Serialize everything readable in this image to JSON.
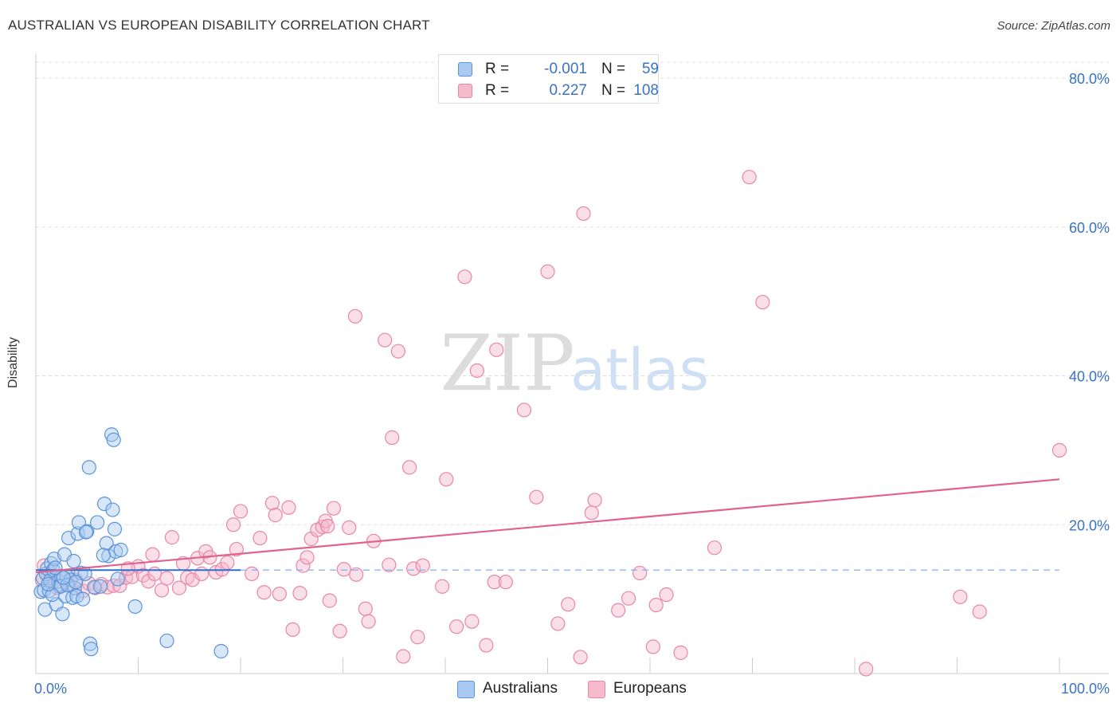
{
  "title": "AUSTRALIAN VS EUROPEAN DISABILITY CORRELATION CHART",
  "source": "Source: ZipAtlas.com",
  "watermark": {
    "zip": "ZIP",
    "atlas": "atlas"
  },
  "stats": {
    "australians": {
      "r_label": "R =",
      "r_value": "-0.001",
      "n_label": "N =",
      "n_value": "59"
    },
    "europeans": {
      "r_label": "R =",
      "r_value": "0.227",
      "n_label": "N =",
      "n_value": "108"
    }
  },
  "legend": {
    "australians": "Australians",
    "europeans": "Europeans"
  },
  "colors": {
    "australians_fill": "#a9c9f0",
    "australians_stroke": "#5b93d9",
    "australians_line": "#2f6fd0",
    "europeans_fill": "#f7b9cc",
    "europeans_stroke": "#e886a6",
    "europeans_line": "#e0628f",
    "tick_label": "#3873c8",
    "grid": "#dddddd"
  },
  "chart_data": {
    "type": "scatter",
    "title": "AUSTRALIAN VS EUROPEAN DISABILITY CORRELATION CHART",
    "xlabel": "",
    "ylabel": "Disability",
    "xlim": [
      0,
      100
    ],
    "ylim": [
      0,
      83
    ],
    "x_tick_labels": [
      {
        "value": 0,
        "label": "0.0%"
      },
      {
        "value": 100,
        "label": "100.0%"
      }
    ],
    "y_tick_labels": [
      {
        "value": 20,
        "label": "20.0%"
      },
      {
        "value": 40,
        "label": "40.0%"
      },
      {
        "value": 60,
        "label": "60.0%"
      },
      {
        "value": 80,
        "label": "80.0%"
      }
    ],
    "x_minor_ticks": [
      10,
      20,
      30,
      40,
      50,
      60,
      70,
      80,
      90,
      100
    ],
    "grid": true,
    "series": [
      {
        "name": "Australians",
        "trend": {
          "x": [
            0,
            20
          ],
          "y": [
            13.9,
            13.9
          ],
          "dashed_extension_to": 100
        },
        "points": [
          [
            0.5,
            11.0
          ],
          [
            0.7,
            12.8
          ],
          [
            0.8,
            11.2
          ],
          [
            0.9,
            8.6
          ],
          [
            1.0,
            13.4
          ],
          [
            1.1,
            14.1
          ],
          [
            1.3,
            11.1
          ],
          [
            1.4,
            12.5
          ],
          [
            1.5,
            14.8
          ],
          [
            1.7,
            13.9
          ],
          [
            1.8,
            15.4
          ],
          [
            2.0,
            9.3
          ],
          [
            2.2,
            12.4
          ],
          [
            2.3,
            11.8
          ],
          [
            2.5,
            13.0
          ],
          [
            2.6,
            8.0
          ],
          [
            2.8,
            16.0
          ],
          [
            2.9,
            10.4
          ],
          [
            3.0,
            13.1
          ],
          [
            3.2,
            18.2
          ],
          [
            3.4,
            12.6
          ],
          [
            3.6,
            10.2
          ],
          [
            3.7,
            15.1
          ],
          [
            3.8,
            11.5
          ],
          [
            4.0,
            10.4
          ],
          [
            4.1,
            18.8
          ],
          [
            4.2,
            20.3
          ],
          [
            4.4,
            13.5
          ],
          [
            4.6,
            10.0
          ],
          [
            4.8,
            13.4
          ],
          [
            5.0,
            19.1
          ],
          [
            5.2,
            27.7
          ],
          [
            5.3,
            4.0
          ],
          [
            5.4,
            3.3
          ],
          [
            5.7,
            11.6
          ],
          [
            6.0,
            20.3
          ],
          [
            6.3,
            11.7
          ],
          [
            6.7,
            22.8
          ],
          [
            6.9,
            17.5
          ],
          [
            7.1,
            15.8
          ],
          [
            7.4,
            32.1
          ],
          [
            7.6,
            31.4
          ],
          [
            7.8,
            16.4
          ],
          [
            8.0,
            12.7
          ],
          [
            8.3,
            16.6
          ],
          [
            9.7,
            9.0
          ],
          [
            7.5,
            22.0
          ],
          [
            7.7,
            19.4
          ],
          [
            6.6,
            15.9
          ],
          [
            4.9,
            19.0
          ],
          [
            2.4,
            11.7
          ],
          [
            1.6,
            10.6
          ],
          [
            1.2,
            12.0
          ],
          [
            3.1,
            11.9
          ],
          [
            3.9,
            12.3
          ],
          [
            12.8,
            4.4
          ],
          [
            18.1,
            3.0
          ],
          [
            1.9,
            14.2
          ],
          [
            2.7,
            12.9
          ]
        ]
      },
      {
        "name": "Europeans",
        "trend": {
          "x": [
            0,
            100
          ],
          "y": [
            13.6,
            26.1
          ]
        },
        "points": [
          [
            0.6,
            12.6
          ],
          [
            0.8,
            14.5
          ],
          [
            1.2,
            13.2
          ],
          [
            1.5,
            12.1
          ],
          [
            2.1,
            11.5
          ],
          [
            2.7,
            12.7
          ],
          [
            3.3,
            11.9
          ],
          [
            3.9,
            12.6
          ],
          [
            4.6,
            11.1
          ],
          [
            5.2,
            12.1
          ],
          [
            5.8,
            11.5
          ],
          [
            6.4,
            12.0
          ],
          [
            7.0,
            11.6
          ],
          [
            7.6,
            11.8
          ],
          [
            8.2,
            11.8
          ],
          [
            8.8,
            12.9
          ],
          [
            9.4,
            13.0
          ],
          [
            10.0,
            14.4
          ],
          [
            10.5,
            13.2
          ],
          [
            11.0,
            12.4
          ],
          [
            11.6,
            13.4
          ],
          [
            11.4,
            16.0
          ],
          [
            12.3,
            11.2
          ],
          [
            12.8,
            12.8
          ],
          [
            13.3,
            18.3
          ],
          [
            14.0,
            11.5
          ],
          [
            14.4,
            14.8
          ],
          [
            14.8,
            12.9
          ],
          [
            15.3,
            12.6
          ],
          [
            15.8,
            15.5
          ],
          [
            16.2,
            13.4
          ],
          [
            16.6,
            16.4
          ],
          [
            17.0,
            15.6
          ],
          [
            17.6,
            13.6
          ],
          [
            18.2,
            14.0
          ],
          [
            18.7,
            14.9
          ],
          [
            19.3,
            20.0
          ],
          [
            19.6,
            16.7
          ],
          [
            20.0,
            21.8
          ],
          [
            21.1,
            13.4
          ],
          [
            21.9,
            18.2
          ],
          [
            22.3,
            10.9
          ],
          [
            23.1,
            22.9
          ],
          [
            23.4,
            21.3
          ],
          [
            23.8,
            10.7
          ],
          [
            24.7,
            22.3
          ],
          [
            25.1,
            5.9
          ],
          [
            25.8,
            10.8
          ],
          [
            26.1,
            14.5
          ],
          [
            26.5,
            15.6
          ],
          [
            26.9,
            18.1
          ],
          [
            27.5,
            19.3
          ],
          [
            28.0,
            19.7
          ],
          [
            28.3,
            20.5
          ],
          [
            28.7,
            9.8
          ],
          [
            29.1,
            22.2
          ],
          [
            29.7,
            5.7
          ],
          [
            30.1,
            14.0
          ],
          [
            30.6,
            19.6
          ],
          [
            31.3,
            13.3
          ],
          [
            32.2,
            8.7
          ],
          [
            32.5,
            7.0
          ],
          [
            33.0,
            17.8
          ],
          [
            34.1,
            44.8
          ],
          [
            34.5,
            14.6
          ],
          [
            35.4,
            43.3
          ],
          [
            35.9,
            2.3
          ],
          [
            36.5,
            27.7
          ],
          [
            36.9,
            14.1
          ],
          [
            37.3,
            4.9
          ],
          [
            37.8,
            14.5
          ],
          [
            39.7,
            11.7
          ],
          [
            40.1,
            26.1
          ],
          [
            41.1,
            6.3
          ],
          [
            41.9,
            53.3
          ],
          [
            42.6,
            7.0
          ],
          [
            43.1,
            40.7
          ],
          [
            44.0,
            3.8
          ],
          [
            44.8,
            12.3
          ],
          [
            45.0,
            43.5
          ],
          [
            45.9,
            12.3
          ],
          [
            47.7,
            35.4
          ],
          [
            48.9,
            23.7
          ],
          [
            50.0,
            54.0
          ],
          [
            51.0,
            6.7
          ],
          [
            52.0,
            9.3
          ],
          [
            53.2,
            2.2
          ],
          [
            53.5,
            61.8
          ],
          [
            54.3,
            21.6
          ],
          [
            54.6,
            23.3
          ],
          [
            56.9,
            8.5
          ],
          [
            57.9,
            10.1
          ],
          [
            59.0,
            13.5
          ],
          [
            60.3,
            3.6
          ],
          [
            60.6,
            9.2
          ],
          [
            61.6,
            10.6
          ],
          [
            63.0,
            2.8
          ],
          [
            66.3,
            16.9
          ],
          [
            69.7,
            66.7
          ],
          [
            71.0,
            49.9
          ],
          [
            81.1,
            0.6
          ],
          [
            90.3,
            10.3
          ],
          [
            92.2,
            8.3
          ],
          [
            100.0,
            30.0
          ],
          [
            31.2,
            48.0
          ],
          [
            34.8,
            31.7
          ],
          [
            28.5,
            19.8
          ],
          [
            9.0,
            14.1
          ]
        ]
      }
    ]
  }
}
